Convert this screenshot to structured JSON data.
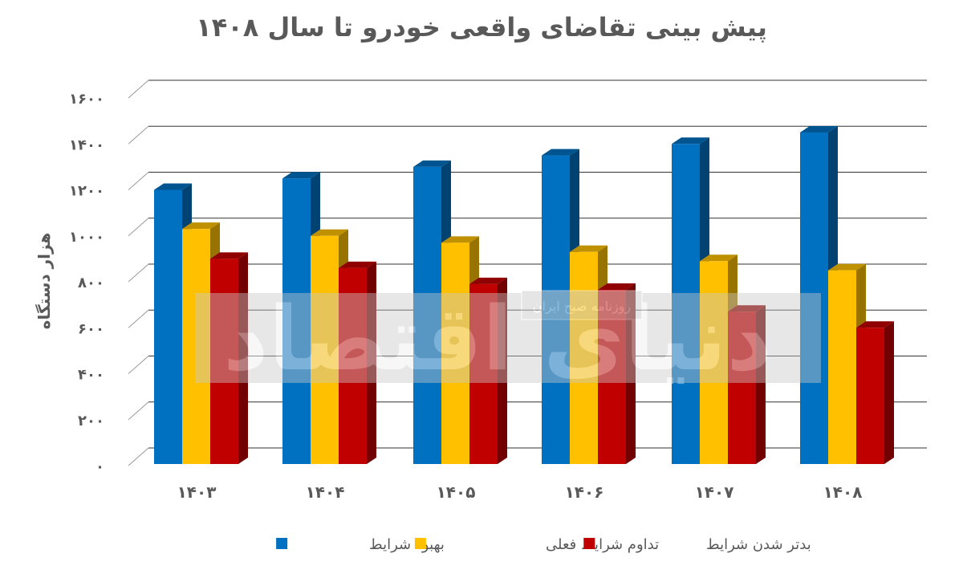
{
  "chart_data": {
    "type": "bar",
    "title": "پیش بینی تقاضای واقعی خودرو تا سال ۱۴۰۸",
    "ylabel": "هزار دستگاه",
    "xlabel": "",
    "categories": [
      "۱۴۰۳",
      "۱۴۰۴",
      "۱۴۰۵",
      "۱۴۰۶",
      "۱۴۰۷",
      "۱۴۰۸"
    ],
    "ylim": [
      0,
      1600
    ],
    "yticks": [
      0,
      200,
      400,
      600,
      800,
      1000,
      1200,
      1400,
      1600
    ],
    "ytick_labels": [
      "۰",
      "۲۰۰",
      "۴۰۰",
      "۶۰۰",
      "۸۰۰",
      "۱۰۰۰",
      "۱۲۰۰",
      "۱۴۰۰",
      "۱۶۰۰"
    ],
    "grid": true,
    "style": "3d-clustered-column",
    "legend_position": "bottom",
    "series": [
      {
        "name": "بهبود شرایط",
        "color": "#0070c0",
        "values": [
          1200,
          1250,
          1300,
          1350,
          1400,
          1450
        ]
      },
      {
        "name": "تداوم شرایط فعلی",
        "color": "#ffc000",
        "values": [
          1030,
          1000,
          970,
          930,
          890,
          850
        ]
      },
      {
        "name": "بدتر شدن شرایط",
        "color": "#c00000",
        "values": [
          900,
          860,
          790,
          765,
          670,
          600
        ]
      }
    ]
  },
  "watermark": {
    "logo_text": "دنیای اقتصاد",
    "caption": "روزنامه صبح ایران"
  }
}
